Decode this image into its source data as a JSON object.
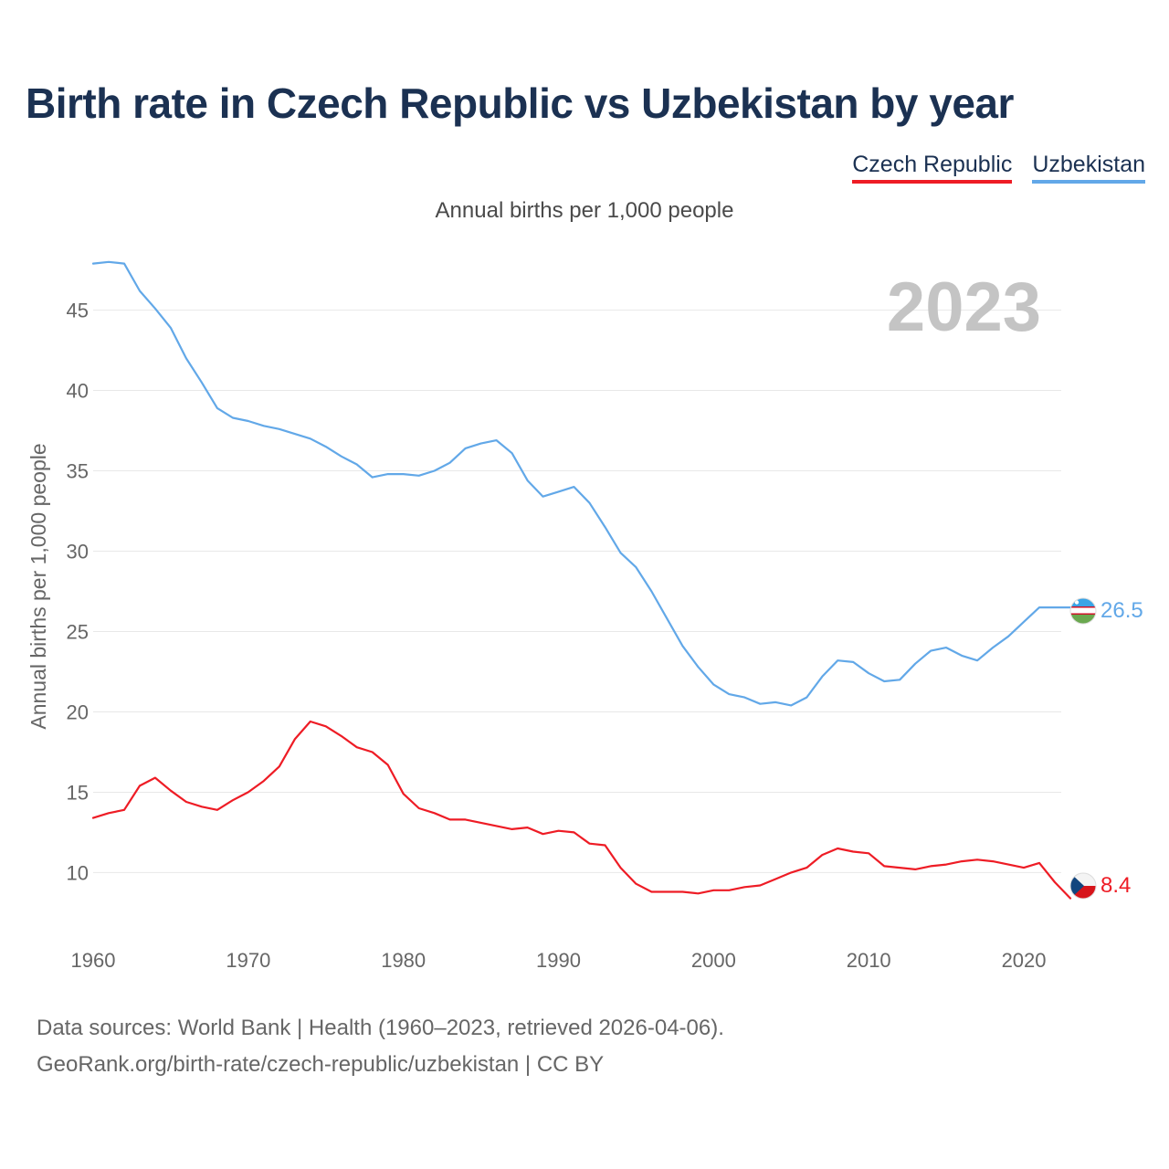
{
  "title": "Birth rate in Czech Republic vs Uzbekistan by year",
  "subtitle": "Annual births per 1,000 people",
  "legend": [
    {
      "label": "Czech Republic",
      "color": "#ee1c25"
    },
    {
      "label": "Uzbekistan",
      "color": "#62a8e8"
    }
  ],
  "source": {
    "line1": "Data sources: World Bank | Health (1960–2023, retrieved 2026-04-06).",
    "line2": "GeoRank.org/birth-rate/czech-republic/uzbekistan | CC BY"
  },
  "chart_data": {
    "type": "line",
    "title": "Birth rate in Czech Republic vs Uzbekistan by year",
    "xlabel": "",
    "ylabel": "Annual births per 1,000 people",
    "xlim": [
      1960,
      2023
    ],
    "ylim": [
      6.5,
      48.5
    ],
    "x_ticks": [
      1960,
      1970,
      1980,
      1990,
      2000,
      2010,
      2020
    ],
    "y_ticks": [
      10,
      15,
      20,
      25,
      30,
      35,
      40,
      45
    ],
    "grid": true,
    "legend_position": "top-right",
    "year_label": "2023",
    "x": [
      1960,
      1961,
      1962,
      1963,
      1964,
      1965,
      1966,
      1967,
      1968,
      1969,
      1970,
      1971,
      1972,
      1973,
      1974,
      1975,
      1976,
      1977,
      1978,
      1979,
      1980,
      1981,
      1982,
      1983,
      1984,
      1985,
      1986,
      1987,
      1988,
      1989,
      1990,
      1991,
      1992,
      1993,
      1994,
      1995,
      1996,
      1997,
      1998,
      1999,
      2000,
      2001,
      2002,
      2003,
      2004,
      2005,
      2006,
      2007,
      2008,
      2009,
      2010,
      2011,
      2012,
      2013,
      2014,
      2015,
      2016,
      2017,
      2018,
      2019,
      2020,
      2021,
      2022,
      2023
    ],
    "series": [
      {
        "name": "Czech Republic",
        "color": "#ee1c25",
        "end_label": "8.4",
        "flag": "czech-flag",
        "values": [
          13.4,
          13.7,
          13.9,
          15.4,
          15.9,
          15.1,
          14.4,
          14.1,
          13.9,
          14.5,
          15.0,
          15.7,
          16.6,
          18.3,
          19.4,
          19.1,
          18.5,
          17.8,
          17.5,
          16.7,
          14.9,
          14.0,
          13.7,
          13.3,
          13.3,
          13.1,
          12.9,
          12.7,
          12.8,
          12.4,
          12.6,
          12.5,
          11.8,
          11.7,
          10.3,
          9.3,
          8.8,
          8.8,
          8.8,
          8.7,
          8.9,
          8.9,
          9.1,
          9.2,
          9.6,
          10.0,
          10.3,
          11.1,
          11.5,
          11.3,
          11.2,
          10.4,
          10.3,
          10.2,
          10.4,
          10.5,
          10.7,
          10.8,
          10.7,
          10.5,
          10.3,
          10.6,
          9.4,
          8.4
        ]
      },
      {
        "name": "Uzbekistan",
        "color": "#62a8e8",
        "end_label": "26.5",
        "flag": "uzbekistan-flag",
        "values": [
          47.9,
          48.0,
          47.9,
          46.2,
          45.1,
          43.9,
          42.0,
          40.5,
          38.9,
          38.3,
          38.1,
          37.8,
          37.6,
          37.3,
          37.0,
          36.5,
          35.9,
          35.4,
          34.6,
          34.8,
          34.8,
          34.7,
          35.0,
          35.5,
          36.4,
          36.7,
          36.9,
          36.1,
          34.4,
          33.4,
          33.7,
          34.0,
          33.0,
          31.5,
          29.9,
          29.0,
          27.5,
          25.8,
          24.1,
          22.8,
          21.7,
          21.1,
          20.9,
          20.5,
          20.6,
          20.4,
          20.9,
          22.2,
          23.2,
          23.1,
          22.4,
          21.9,
          22.0,
          23.0,
          23.8,
          24.0,
          23.5,
          23.2,
          24.0,
          24.7,
          25.6,
          26.5,
          26.5,
          26.5
        ]
      }
    ]
  }
}
